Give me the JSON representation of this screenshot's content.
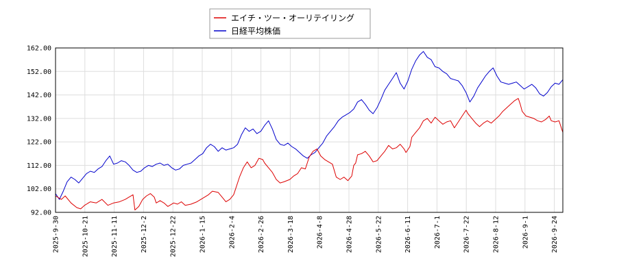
{
  "chart_data": {
    "type": "line",
    "title": "",
    "xlabel": "",
    "ylabel": "",
    "ylim": [
      92,
      162
    ],
    "y_ticks": [
      "92.00",
      "102.00",
      "112.00",
      "122.00",
      "132.00",
      "142.00",
      "152.00",
      "162.00"
    ],
    "x_ticks": [
      "2025-9-30",
      "2025-10-21",
      "2025-11-11",
      "2025-12-2",
      "2025-12-22",
      "2026-1-15",
      "2026-2-4",
      "2026-2-26",
      "2026-3-18",
      "2026-4-8",
      "2026-4-28",
      "2026-5-22",
      "2026-6-11",
      "2026-7-1",
      "2026-7-22",
      "2026-8-12",
      "2026-9-1",
      "2026-9-24"
    ],
    "grid": true,
    "legend_position": "top-center",
    "series": [
      {
        "name": "エイチ・ツー・オーリテイリング",
        "color": "#dd0000",
        "values": [
          [
            0,
            99
          ],
          [
            3,
            97.5
          ],
          [
            5,
            99
          ],
          [
            8,
            96
          ],
          [
            11,
            94
          ],
          [
            13,
            93.5
          ],
          [
            15,
            95
          ],
          [
            18,
            96.5
          ],
          [
            21,
            96
          ],
          [
            24,
            97.5
          ],
          [
            27,
            95
          ],
          [
            30,
            96
          ],
          [
            33,
            96.5
          ],
          [
            36,
            97.5
          ],
          [
            38,
            98.5
          ],
          [
            40,
            99.5
          ],
          [
            41,
            93
          ],
          [
            43,
            94.5
          ],
          [
            45,
            97.5
          ],
          [
            47,
            99
          ],
          [
            49,
            100
          ],
          [
            51,
            98.5
          ],
          [
            52,
            96
          ],
          [
            54,
            97
          ],
          [
            56,
            96
          ],
          [
            58,
            94.5
          ],
          [
            61,
            96
          ],
          [
            63,
            95.5
          ],
          [
            65,
            96.5
          ],
          [
            67,
            95
          ],
          [
            70,
            95.5
          ],
          [
            73,
            96.5
          ],
          [
            76,
            98
          ],
          [
            79,
            99.5
          ],
          [
            81,
            101
          ],
          [
            84,
            100.5
          ],
          [
            86,
            98.5
          ],
          [
            88,
            96.5
          ],
          [
            90,
            97.5
          ],
          [
            92,
            99.5
          ],
          [
            93,
            102
          ],
          [
            95,
            107
          ],
          [
            97,
            111
          ],
          [
            99,
            113.5
          ],
          [
            101,
            111
          ],
          [
            103,
            112
          ],
          [
            105,
            115
          ],
          [
            107,
            114.5
          ],
          [
            108,
            113
          ],
          [
            110,
            111
          ],
          [
            112,
            109
          ],
          [
            114,
            106
          ],
          [
            116,
            104.5
          ],
          [
            118,
            105
          ],
          [
            121,
            106
          ],
          [
            123,
            107.5
          ],
          [
            125,
            108.5
          ],
          [
            127,
            111
          ],
          [
            129,
            110.5
          ],
          [
            131,
            115.5
          ],
          [
            133,
            118
          ],
          [
            135,
            119
          ],
          [
            137,
            116
          ],
          [
            139,
            114.5
          ],
          [
            141,
            113.5
          ],
          [
            143,
            112.5
          ],
          [
            145,
            107
          ],
          [
            147,
            106
          ],
          [
            149,
            107
          ],
          [
            151,
            105.5
          ],
          [
            153,
            107.5
          ],
          [
            154,
            112
          ],
          [
            155,
            113
          ],
          [
            156,
            116.5
          ],
          [
            158,
            117
          ],
          [
            160,
            118
          ],
          [
            162,
            116
          ],
          [
            164,
            113.5
          ],
          [
            166,
            114
          ],
          [
            168,
            116
          ],
          [
            170,
            118
          ],
          [
            172,
            120.5
          ],
          [
            174,
            119
          ],
          [
            176,
            119.5
          ],
          [
            178,
            121
          ],
          [
            180,
            119
          ],
          [
            181,
            117.5
          ],
          [
            183,
            120
          ],
          [
            184,
            124
          ],
          [
            186,
            126
          ],
          [
            188,
            128
          ],
          [
            190,
            131
          ],
          [
            192,
            132
          ],
          [
            194,
            130
          ],
          [
            196,
            132.5
          ],
          [
            198,
            131
          ],
          [
            200,
            129.5
          ],
          [
            202,
            130.5
          ],
          [
            204,
            131
          ],
          [
            206,
            128
          ],
          [
            208,
            130.5
          ],
          [
            210,
            133
          ],
          [
            212,
            135.5
          ],
          [
            213,
            134
          ],
          [
            215,
            132
          ],
          [
            217,
            130
          ],
          [
            219,
            128.5
          ],
          [
            221,
            130
          ],
          [
            223,
            131
          ],
          [
            225,
            130
          ],
          [
            227,
            131.5
          ],
          [
            229,
            133
          ],
          [
            231,
            135
          ],
          [
            233,
            136.5
          ],
          [
            235,
            138
          ],
          [
            237,
            139.5
          ],
          [
            239,
            140.5
          ],
          [
            240,
            138
          ],
          [
            241,
            135
          ],
          [
            243,
            133
          ],
          [
            245,
            132.5
          ],
          [
            247,
            132
          ],
          [
            249,
            131
          ],
          [
            251,
            130.5
          ],
          [
            253,
            131.5
          ],
          [
            255,
            133
          ],
          [
            256,
            131
          ],
          [
            258,
            130.5
          ],
          [
            260,
            131
          ],
          [
            262,
            126
          ]
        ]
      },
      {
        "name": "日経平均株価",
        "color": "#0000cc",
        "values": [
          [
            0,
            100
          ],
          [
            2,
            97.5
          ],
          [
            4,
            101
          ],
          [
            6,
            105
          ],
          [
            8,
            107
          ],
          [
            10,
            106
          ],
          [
            12,
            104.5
          ],
          [
            14,
            106.5
          ],
          [
            16,
            108.5
          ],
          [
            18,
            109.5
          ],
          [
            20,
            109
          ],
          [
            22,
            110.5
          ],
          [
            24,
            111.5
          ],
          [
            26,
            114
          ],
          [
            28,
            116
          ],
          [
            30,
            112.5
          ],
          [
            32,
            113
          ],
          [
            34,
            114
          ],
          [
            36,
            113.5
          ],
          [
            38,
            112
          ],
          [
            40,
            110
          ],
          [
            42,
            109
          ],
          [
            44,
            109.5
          ],
          [
            46,
            111
          ],
          [
            48,
            112
          ],
          [
            50,
            111.5
          ],
          [
            52,
            112.5
          ],
          [
            54,
            113
          ],
          [
            56,
            112
          ],
          [
            58,
            112.5
          ],
          [
            60,
            111
          ],
          [
            62,
            110
          ],
          [
            64,
            110.5
          ],
          [
            66,
            112
          ],
          [
            68,
            112.5
          ],
          [
            70,
            113
          ],
          [
            72,
            114.5
          ],
          [
            74,
            116
          ],
          [
            76,
            117
          ],
          [
            78,
            119.5
          ],
          [
            80,
            121
          ],
          [
            82,
            120
          ],
          [
            84,
            118
          ],
          [
            86,
            119.5
          ],
          [
            88,
            118.5
          ],
          [
            90,
            119
          ],
          [
            92,
            119.5
          ],
          [
            94,
            121
          ],
          [
            96,
            125
          ],
          [
            98,
            128
          ],
          [
            100,
            126.5
          ],
          [
            102,
            127.5
          ],
          [
            104,
            125.5
          ],
          [
            106,
            126.5
          ],
          [
            108,
            129
          ],
          [
            110,
            131
          ],
          [
            112,
            127.5
          ],
          [
            114,
            123
          ],
          [
            116,
            121
          ],
          [
            118,
            120.5
          ],
          [
            120,
            121.5
          ],
          [
            122,
            120
          ],
          [
            124,
            119
          ],
          [
            126,
            117.5
          ],
          [
            128,
            116
          ],
          [
            130,
            115
          ],
          [
            132,
            116.5
          ],
          [
            134,
            117.5
          ],
          [
            136,
            119.5
          ],
          [
            138,
            121.5
          ],
          [
            140,
            124.5
          ],
          [
            142,
            126.5
          ],
          [
            144,
            128.5
          ],
          [
            146,
            131
          ],
          [
            148,
            132.5
          ],
          [
            150,
            133.5
          ],
          [
            152,
            134.5
          ],
          [
            154,
            136
          ],
          [
            156,
            139
          ],
          [
            158,
            140
          ],
          [
            160,
            138
          ],
          [
            162,
            135.5
          ],
          [
            164,
            134
          ],
          [
            166,
            136.5
          ],
          [
            168,
            140
          ],
          [
            170,
            144
          ],
          [
            172,
            146.5
          ],
          [
            174,
            149
          ],
          [
            176,
            151.5
          ],
          [
            178,
            147
          ],
          [
            180,
            144.5
          ],
          [
            182,
            148
          ],
          [
            184,
            153
          ],
          [
            186,
            156.5
          ],
          [
            188,
            159
          ],
          [
            190,
            160.5
          ],
          [
            192,
            158
          ],
          [
            194,
            157
          ],
          [
            196,
            154
          ],
          [
            198,
            153.5
          ],
          [
            200,
            152
          ],
          [
            202,
            151
          ],
          [
            204,
            149
          ],
          [
            206,
            148.5
          ],
          [
            208,
            148
          ],
          [
            210,
            146
          ],
          [
            212,
            143
          ],
          [
            214,
            139
          ],
          [
            216,
            141.5
          ],
          [
            218,
            145
          ],
          [
            220,
            147.5
          ],
          [
            222,
            150
          ],
          [
            224,
            152
          ],
          [
            226,
            153.5
          ],
          [
            228,
            150
          ],
          [
            230,
            147.5
          ],
          [
            232,
            147
          ],
          [
            234,
            146.5
          ],
          [
            236,
            147
          ],
          [
            238,
            147.5
          ],
          [
            240,
            146
          ],
          [
            242,
            144.5
          ],
          [
            244,
            145.5
          ],
          [
            246,
            146.5
          ],
          [
            248,
            145
          ],
          [
            250,
            142.5
          ],
          [
            252,
            141.5
          ],
          [
            254,
            143
          ],
          [
            256,
            145.5
          ],
          [
            258,
            147
          ],
          [
            260,
            146.5
          ],
          [
            262,
            148.5
          ]
        ]
      }
    ]
  }
}
